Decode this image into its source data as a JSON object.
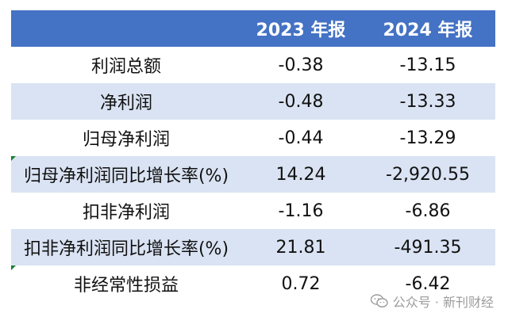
{
  "table": {
    "headers": [
      "",
      "2023 年报",
      "2024 年报"
    ],
    "rows": [
      {
        "label": "利润总额",
        "y2023": "-0.38",
        "y2024": "-13.15"
      },
      {
        "label": "净利润",
        "y2023": "-0.48",
        "y2024": "-13.33"
      },
      {
        "label": "归母净利润",
        "y2023": "-0.44",
        "y2024": "-13.29"
      },
      {
        "label": "归母净利润同比增长率(%)",
        "y2023": "14.24",
        "y2024": "-2,920.55"
      },
      {
        "label": "扣非净利润",
        "y2023": "-1.16",
        "y2024": "-6.86"
      },
      {
        "label": "扣非净利润同比增长率(%)",
        "y2023": "21.81",
        "y2024": "-491.35"
      },
      {
        "label": "非经常性损益",
        "y2023": "0.72",
        "y2024": "-6.42"
      }
    ]
  },
  "watermark": {
    "icon": "wechat-icon",
    "text": "公众号 · 新刊财经"
  },
  "colors": {
    "header_bg": "#4472c4",
    "header_text": "#ffffff",
    "row_alt_bg": "#dae3f3",
    "flag": "#1a7f37"
  }
}
